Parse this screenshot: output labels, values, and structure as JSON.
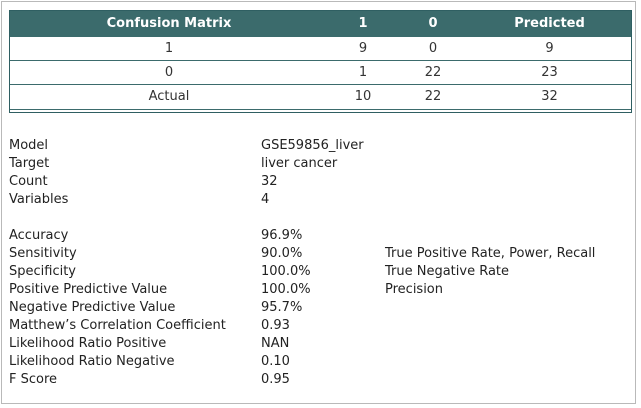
{
  "confusion_matrix": {
    "headers": [
      "Confusion Matrix",
      "1",
      "0",
      "Predicted"
    ],
    "rows": [
      [
        "1",
        "9",
        "0",
        "9"
      ],
      [
        "0",
        "1",
        "22",
        "23"
      ],
      [
        "Actual",
        "10",
        "22",
        "32"
      ]
    ],
    "colors": {
      "header_bg": "#3b6b6c",
      "header_text": "#ffffff",
      "border": "#3b6b6c"
    }
  },
  "summary": {
    "model": {
      "label": "Model",
      "value": "GSE59856_liver"
    },
    "target": {
      "label": "Target",
      "value": "liver cancer"
    },
    "count": {
      "label": "Count",
      "value": "32"
    },
    "variables": {
      "label": "Variables",
      "value": "4"
    }
  },
  "metrics": {
    "accuracy": {
      "label": "Accuracy",
      "value": "96.9%",
      "note": ""
    },
    "sensitivity": {
      "label": "Sensitivity",
      "value": "90.0%",
      "note": "True Positive Rate, Power, Recall"
    },
    "specificity": {
      "label": "Specificity",
      "value": "100.0%",
      "note": "True Negative Rate"
    },
    "ppv": {
      "label": "Positive Predictive Value",
      "value": "100.0%",
      "note": "Precision"
    },
    "npv": {
      "label": "Negative Predictive Value",
      "value": "95.7%",
      "note": ""
    },
    "mcc": {
      "label": "Matthew’s Correlation Coefficient",
      "value": "0.93",
      "note": ""
    },
    "lr_pos": {
      "label": "Likelihood Ratio Positive",
      "value": "NAN",
      "note": ""
    },
    "lr_neg": {
      "label": "Likelihood Ratio Negative",
      "value": "0.10",
      "note": ""
    },
    "f_score": {
      "label": "F Score",
      "value": "0.95",
      "note": ""
    }
  }
}
